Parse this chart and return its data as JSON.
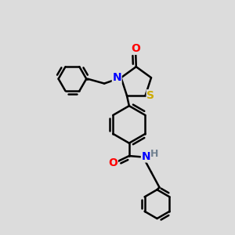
{
  "bg_color": "#dcdcdc",
  "atom_colors": {
    "C": "#000000",
    "N": "#0000ff",
    "O": "#ff0000",
    "S": "#ccaa00",
    "H": "#708090"
  },
  "bond_color": "#000000",
  "bond_width": 1.8,
  "figsize": [
    3.0,
    3.0
  ],
  "dpi": 100
}
